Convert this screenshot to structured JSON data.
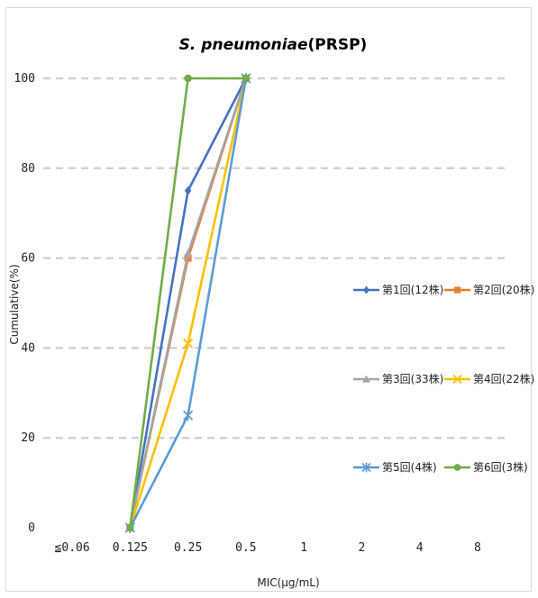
{
  "colors": {
    "frame": "#d9d9d9",
    "grid": "#d0d0d0",
    "background": "#ffffff"
  },
  "chart_data": {
    "type": "line",
    "title_italic": "S. pneumoniae",
    "title_rest": "(PRSP)",
    "xlabel": "MIC(μg/mL)",
    "ylabel": "Cumulative(%)",
    "categories": [
      "≦0.06",
      "0.125",
      "0.25",
      "0.5",
      "1",
      "2",
      "4",
      "8"
    ],
    "ylim": [
      0,
      100
    ],
    "yticks": [
      0,
      20,
      40,
      60,
      80,
      100
    ],
    "grid": true,
    "legend_position": "right",
    "series": [
      {
        "name": "第1回(12株)",
        "color": "#4472c4",
        "marker": "diamond",
        "values": [
          null,
          0,
          75,
          100,
          null,
          null,
          null,
          null
        ]
      },
      {
        "name": "第2回(20株)",
        "color": "#ed7d31",
        "marker": "square",
        "values": [
          null,
          0,
          60,
          100,
          null,
          null,
          null,
          null
        ]
      },
      {
        "name": "第3回(33株)",
        "color": "#a5a5a5",
        "marker": "triangle",
        "values": [
          null,
          0,
          61,
          100,
          null,
          null,
          null,
          null
        ]
      },
      {
        "name": "第4回(22株)",
        "color": "#ffc000",
        "marker": "x",
        "values": [
          null,
          0,
          41,
          100,
          null,
          null,
          null,
          null
        ]
      },
      {
        "name": "第5回(4株)",
        "color": "#5b9bd5",
        "marker": "star",
        "values": [
          null,
          0,
          25,
          100,
          null,
          null,
          null,
          null
        ]
      },
      {
        "name": "第6回(3株)",
        "color": "#70ad47",
        "marker": "circle",
        "values": [
          null,
          0,
          100,
          100,
          null,
          null,
          null,
          null
        ]
      }
    ]
  }
}
